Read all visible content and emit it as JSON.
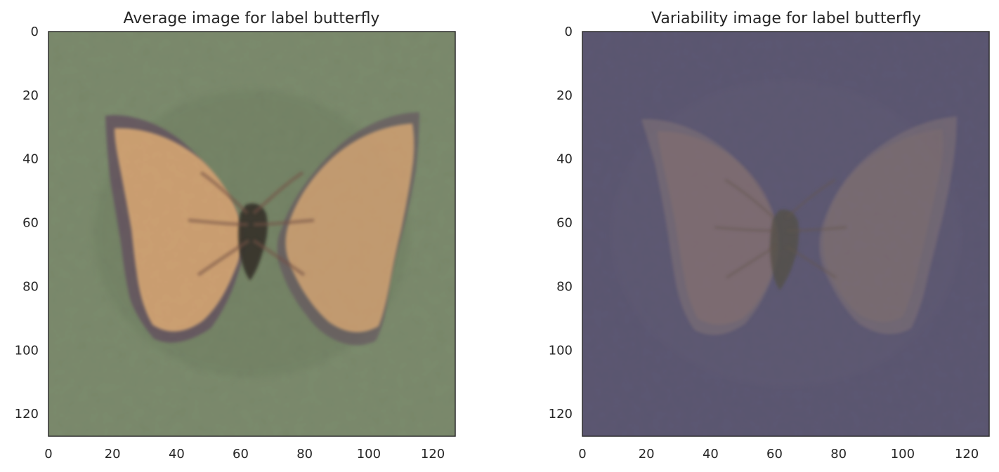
{
  "chart_data": [
    {
      "type": "heatmap",
      "title": "Average image for label butterfly",
      "xlabel": "",
      "ylabel": "",
      "xlim": [
        0,
        127
      ],
      "ylim": [
        127,
        0
      ],
      "x_ticks": [
        "0",
        "20",
        "40",
        "60",
        "80",
        "100",
        "120"
      ],
      "y_ticks": [
        "0",
        "20",
        "40",
        "60",
        "80",
        "100",
        "120"
      ],
      "grid": false,
      "image_content": "butterfly",
      "colors": {
        "background": "#6f7f5f",
        "wing": "#d7a56e",
        "wing_edge": "#5c4658",
        "body": "#2f2a24"
      }
    },
    {
      "type": "heatmap",
      "title": "Variability image for label butterfly",
      "xlabel": "",
      "ylabel": "",
      "xlim": [
        0,
        127
      ],
      "ylim": [
        127,
        0
      ],
      "x_ticks": [
        "0",
        "20",
        "40",
        "60",
        "80",
        "100",
        "120"
      ],
      "y_ticks": [
        "0",
        "20",
        "40",
        "60",
        "80",
        "100",
        "120"
      ],
      "grid": false,
      "image_content": "butterfly",
      "colors": {
        "background": "#4f4b66",
        "wing": "#7b6d72",
        "wing_edge": "#5d556a",
        "body": "#4d4a3f"
      }
    }
  ]
}
